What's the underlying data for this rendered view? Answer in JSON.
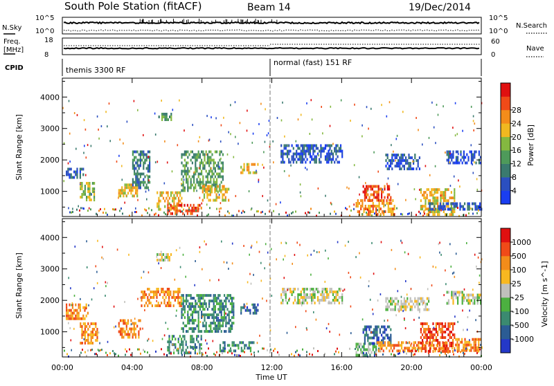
{
  "header": {
    "title": "South Pole Station (fitACF)",
    "beam": "Beam 14",
    "date": "19/Dec/2014"
  },
  "strips": {
    "nsky": {
      "left_label": "N.Sky",
      "top_label": "10^5",
      "bottom_label": "10^0",
      "right_top_label": "10^5",
      "right_bottom_label": "10^0",
      "right_label": "N.Search"
    },
    "freq": {
      "left_label": "Freq.",
      "unit_label": "[MHz]",
      "top_label": "18",
      "bottom_label": "8",
      "right_top_label": "60",
      "right_bottom_label": "0",
      "right_label": "Nave"
    },
    "cpid": {
      "left_label": "CPID",
      "modes": [
        {
          "label": "themis 3300 RF",
          "start_hour": 0,
          "end_hour": 12
        },
        {
          "label": "normal (fast) 151 RF",
          "start_hour": 12,
          "end_hour": 24
        }
      ]
    }
  },
  "chart_data": [
    {
      "type": "heatmap",
      "name": "power",
      "title": "",
      "xlabel": "",
      "ylabel": "Slant Range [km]",
      "xlim": [
        0,
        24
      ],
      "ylim": [
        200,
        4600
      ],
      "x_ticks": [
        0,
        4,
        8,
        12,
        16,
        20,
        24
      ],
      "x_tick_labels": [
        "00:00",
        "04:00",
        "08:00",
        "12:00",
        "16:00",
        "20:00",
        "00:00"
      ],
      "y_ticks": [
        1000,
        2000,
        3000,
        4000
      ],
      "y_tick_labels": [
        "1000",
        "2000",
        "3000",
        "4000"
      ],
      "colorbar": {
        "label": "Power [dB]",
        "ticks": [
          "4",
          "8",
          "12",
          "16",
          "20",
          "24",
          "28"
        ],
        "colors": [
          "#1a3ef0",
          "#2b4fc0",
          "#3a7a6e",
          "#4e9a5a",
          "#84b840",
          "#f0b820",
          "#f38c1a",
          "#f04a18",
          "#e01010"
        ]
      },
      "regions": [
        {
          "t0": 0.2,
          "t1": 1.2,
          "r0": 1450,
          "r1": 1750,
          "level": 1
        },
        {
          "t0": 1.0,
          "t1": 1.8,
          "r0": 700,
          "r1": 1300,
          "level": 4
        },
        {
          "t0": 3.2,
          "t1": 4.3,
          "r0": 850,
          "r1": 1250,
          "level": 5
        },
        {
          "t0": 4.0,
          "t1": 5.0,
          "r0": 1100,
          "r1": 2300,
          "level": 2
        },
        {
          "t0": 5.4,
          "t1": 6.8,
          "r0": 400,
          "r1": 1000,
          "level": 5
        },
        {
          "t0": 6.0,
          "t1": 8.0,
          "r0": 300,
          "r1": 600,
          "level": 7
        },
        {
          "t0": 6.8,
          "t1": 9.2,
          "r0": 1000,
          "r1": 2300,
          "level": 3
        },
        {
          "t0": 8.0,
          "t1": 9.5,
          "r0": 700,
          "r1": 1200,
          "level": 5
        },
        {
          "t0": 10.2,
          "t1": 11.2,
          "r0": 1600,
          "r1": 1900,
          "level": 5
        },
        {
          "t0": 5.5,
          "t1": 6.2,
          "r0": 3300,
          "r1": 3500,
          "level": 3
        },
        {
          "t0": 12.5,
          "t1": 16.0,
          "r0": 1900,
          "r1": 2500,
          "level": 1
        },
        {
          "t0": 16.8,
          "t1": 19.0,
          "r0": 250,
          "r1": 750,
          "level": 6
        },
        {
          "t0": 17.2,
          "t1": 18.8,
          "r0": 700,
          "r1": 1200,
          "level": 7
        },
        {
          "t0": 18.5,
          "t1": 20.5,
          "r0": 1700,
          "r1": 2200,
          "level": 1
        },
        {
          "t0": 20.5,
          "t1": 22.5,
          "r0": 300,
          "r1": 1100,
          "level": 5
        },
        {
          "t0": 22.0,
          "t1": 24.0,
          "r0": 1900,
          "r1": 2300,
          "level": 1
        },
        {
          "t0": 21.0,
          "t1": 24.0,
          "r0": 400,
          "r1": 650,
          "level": 1
        }
      ]
    },
    {
      "type": "heatmap",
      "name": "velocity",
      "title": "",
      "xlabel": "Time UT",
      "ylabel": "Slant Range [km]",
      "xlim": [
        0,
        24
      ],
      "ylim": [
        200,
        4600
      ],
      "x_ticks": [
        0,
        4,
        8,
        12,
        16,
        20,
        24
      ],
      "x_tick_labels": [
        "00:00",
        "04:00",
        "08:00",
        "12:00",
        "16:00",
        "20:00",
        "00:00"
      ],
      "y_ticks": [
        1000,
        2000,
        3000,
        4000
      ],
      "y_tick_labels": [
        "1000",
        "2000",
        "3000",
        "4000"
      ],
      "colorbar": {
        "label": "Velocity [m s^-1]",
        "ticks": [
          "1000",
          "500",
          "100",
          "25",
          "-25",
          "-100",
          "-500",
          "-1000"
        ],
        "colors": [
          "#2438c8",
          "#2b5c94",
          "#3b8a70",
          "#4cb040",
          "#c0c0bc",
          "#f8b820",
          "#f38c1a",
          "#f04a18",
          "#e01010"
        ]
      },
      "regions": [
        {
          "t0": 0.2,
          "t1": 1.5,
          "r0": 1400,
          "r1": 1900,
          "level": 6
        },
        {
          "t0": 1.0,
          "t1": 2.0,
          "r0": 600,
          "r1": 1300,
          "level": 6
        },
        {
          "t0": 3.2,
          "t1": 4.5,
          "r0": 800,
          "r1": 1400,
          "level": 6
        },
        {
          "t0": 4.5,
          "t1": 6.8,
          "r0": 1800,
          "r1": 2400,
          "level": 6
        },
        {
          "t0": 6.0,
          "t1": 8.0,
          "r0": 300,
          "r1": 900,
          "level": 2
        },
        {
          "t0": 6.8,
          "t1": 9.8,
          "r0": 1000,
          "r1": 2200,
          "level": 2
        },
        {
          "t0": 9.0,
          "t1": 11.0,
          "r0": 400,
          "r1": 700,
          "level": 2
        },
        {
          "t0": 10.2,
          "t1": 11.2,
          "r0": 1600,
          "r1": 1900,
          "level": 1
        },
        {
          "t0": 5.4,
          "t1": 6.2,
          "r0": 3300,
          "r1": 3500,
          "level": 4
        },
        {
          "t0": 12.5,
          "t1": 16.0,
          "r0": 1900,
          "r1": 2400,
          "level": 4
        },
        {
          "t0": 16.8,
          "t1": 18.0,
          "r0": 250,
          "r1": 650,
          "level": 3
        },
        {
          "t0": 17.2,
          "t1": 18.8,
          "r0": 650,
          "r1": 1200,
          "level": 1
        },
        {
          "t0": 18.0,
          "t1": 22.0,
          "r0": 400,
          "r1": 700,
          "level": 6
        },
        {
          "t0": 20.5,
          "t1": 22.5,
          "r0": 400,
          "r1": 1300,
          "level": 7
        },
        {
          "t0": 18.5,
          "t1": 21.0,
          "r0": 1700,
          "r1": 2100,
          "level": 4
        },
        {
          "t0": 22.5,
          "t1": 24.0,
          "r0": 400,
          "r1": 800,
          "level": 6
        },
        {
          "t0": 22.0,
          "t1": 24.0,
          "r0": 1900,
          "r1": 2300,
          "level": 4
        }
      ]
    }
  ]
}
